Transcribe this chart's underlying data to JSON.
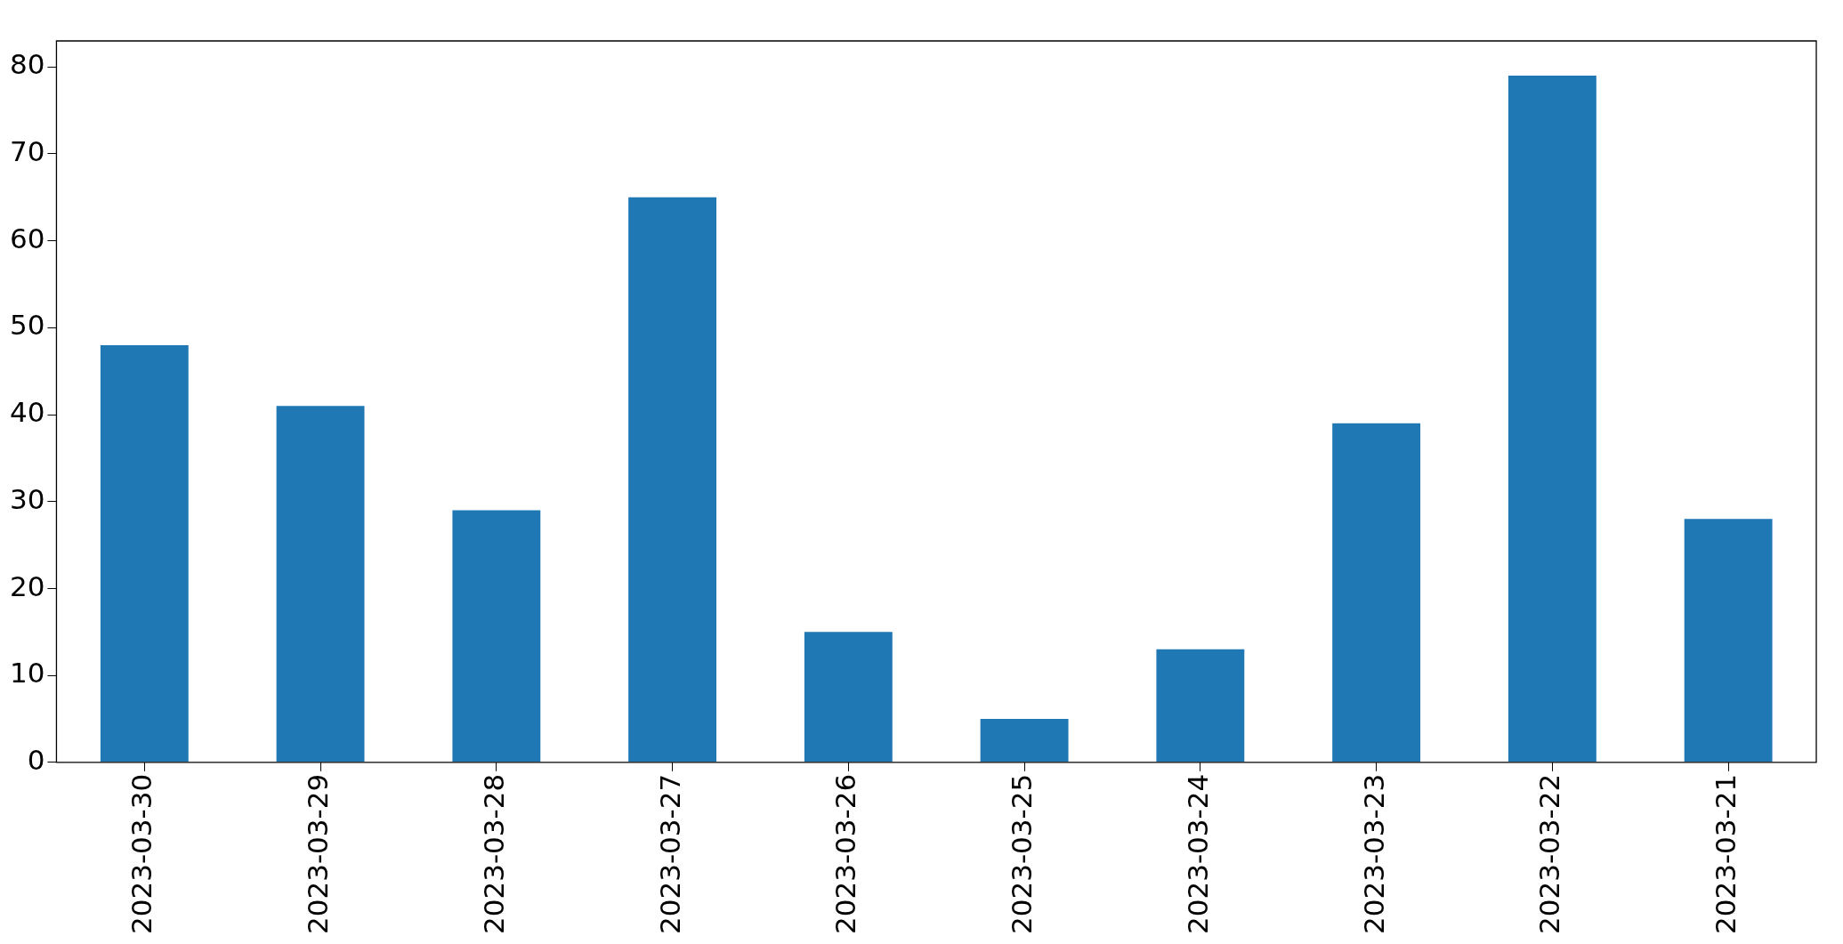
{
  "chart_data": {
    "type": "bar",
    "categories": [
      "2023-03-30",
      "2023-03-29",
      "2023-03-28",
      "2023-03-27",
      "2023-03-26",
      "2023-03-25",
      "2023-03-24",
      "2023-03-23",
      "2023-03-22",
      "2023-03-21"
    ],
    "values": [
      48,
      41,
      29,
      65,
      15,
      5,
      13,
      39,
      79,
      28
    ],
    "color": "#1f77b4",
    "ylim": [
      0,
      83
    ],
    "yticks": [
      0,
      10,
      20,
      30,
      40,
      50,
      60,
      70,
      80
    ],
    "grid": false,
    "legend": false
  }
}
